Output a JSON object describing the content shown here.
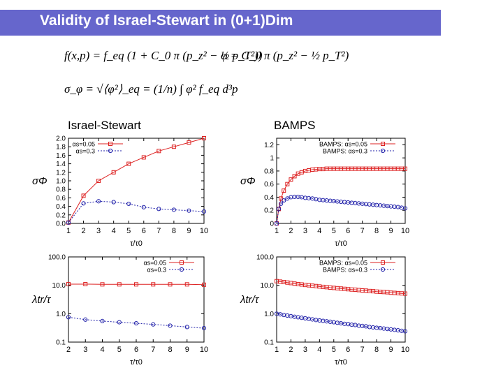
{
  "slide": {
    "title": "Validity of Israel-Stewart in (0+1)Dim",
    "formula_distribution": "f(x,p) = f_eq (1 + C_0 π (p_z² − ½ p_T²))",
    "formula_phi": "φ = C_0 π (p_z² − ½ p_T²)",
    "formula_sigma": "σ_φ = √⟨φ²⟩_eq = (1/n) ∫ φ² f_eq d³p",
    "label_left": "Israel-Stewart",
    "label_right": "BAMPS"
  },
  "colors": {
    "title_bar": "#6666cc",
    "red_series": "#dd2222",
    "blue_series": "#2222aa"
  },
  "chart_data": [
    {
      "id": "is-sigma",
      "type": "line",
      "ylabel": "σΦ",
      "xlabel": "τ/τ0",
      "xlim": [
        1,
        10
      ],
      "ylim": [
        0,
        2.0
      ],
      "y_scale": "linear",
      "xticks": [
        "1",
        "2",
        "3",
        "4",
        "5",
        "6",
        "7",
        "8",
        "9",
        "10"
      ],
      "yticks": [
        "0.0",
        "0.2",
        "0.4",
        "0.6",
        "0.8",
        "1.0",
        "1.2",
        "1.4",
        "1.6",
        "1.8",
        "2.0"
      ],
      "xtick_values": [
        1,
        2,
        3,
        4,
        5,
        6,
        7,
        8,
        9,
        10
      ],
      "ytick_values": [
        0,
        0.2,
        0.4,
        0.6,
        0.8,
        1.0,
        1.2,
        1.4,
        1.6,
        1.8,
        2.0
      ],
      "legend_position": "top-left",
      "series": [
        {
          "name": "αs=0.05",
          "color": "#dd2222",
          "marker": "square",
          "dash": "solid",
          "x": [
            1,
            2,
            3,
            4,
            5,
            6,
            7,
            8,
            9,
            10
          ],
          "y": [
            0.02,
            0.65,
            1.0,
            1.2,
            1.4,
            1.55,
            1.7,
            1.8,
            1.9,
            2.0
          ]
        },
        {
          "name": "αs=0.3",
          "color": "#2222aa",
          "marker": "circle",
          "dash": "dotted",
          "x": [
            1,
            2,
            3,
            4,
            5,
            6,
            7,
            8,
            9,
            10
          ],
          "y": [
            0.02,
            0.47,
            0.52,
            0.5,
            0.46,
            0.38,
            0.34,
            0.32,
            0.3,
            0.28
          ]
        }
      ]
    },
    {
      "id": "bamps-sigma",
      "type": "line",
      "ylabel": "σΦ",
      "xlabel": "τ/τ0",
      "xlim": [
        1,
        10
      ],
      "ylim": [
        0,
        1.3
      ],
      "y_scale": "linear",
      "xticks": [
        "1",
        "2",
        "3",
        "4",
        "5",
        "6",
        "7",
        "8",
        "9",
        "10"
      ],
      "yticks": [
        "0",
        "0.2",
        "0.4",
        "0.6",
        "0.8",
        "1",
        "1.2"
      ],
      "xtick_values": [
        1,
        2,
        3,
        4,
        5,
        6,
        7,
        8,
        9,
        10
      ],
      "ytick_values": [
        0,
        0.2,
        0.4,
        0.6,
        0.8,
        1,
        1.2
      ],
      "legend_position": "top-right",
      "series": [
        {
          "name": "BAMPS: αs=0.05",
          "color": "#dd2222",
          "marker": "square",
          "dash": "solid",
          "x": [
            1,
            1.15,
            1.3,
            1.5,
            1.75,
            2,
            2.25,
            2.5,
            2.75,
            3,
            3.25,
            3.5,
            3.75,
            4,
            4.25,
            4.5,
            4.75,
            5,
            5.25,
            5.5,
            5.75,
            6,
            6.25,
            6.5,
            6.75,
            7,
            7.25,
            7.5,
            7.75,
            8,
            8.25,
            8.5,
            8.75,
            9,
            9.25,
            9.5,
            9.75,
            10
          ],
          "y": [
            0.0,
            0.22,
            0.38,
            0.5,
            0.6,
            0.67,
            0.72,
            0.76,
            0.78,
            0.8,
            0.81,
            0.82,
            0.825,
            0.83,
            0.83,
            0.835,
            0.835,
            0.835,
            0.835,
            0.835,
            0.835,
            0.835,
            0.835,
            0.835,
            0.835,
            0.835,
            0.835,
            0.835,
            0.835,
            0.835,
            0.835,
            0.835,
            0.835,
            0.835,
            0.835,
            0.835,
            0.835,
            0.835
          ]
        },
        {
          "name": "BAMPS: αs=0.3",
          "color": "#2222aa",
          "marker": "circle",
          "dash": "dotted",
          "x": [
            1,
            1.15,
            1.3,
            1.5,
            1.75,
            2,
            2.25,
            2.5,
            2.75,
            3,
            3.25,
            3.5,
            3.75,
            4,
            4.25,
            4.5,
            4.75,
            5,
            5.25,
            5.5,
            5.75,
            6,
            6.25,
            6.5,
            6.75,
            7,
            7.25,
            7.5,
            7.75,
            8,
            8.25,
            8.5,
            8.75,
            9,
            9.25,
            9.5,
            9.75,
            10
          ],
          "y": [
            0.0,
            0.22,
            0.3,
            0.35,
            0.38,
            0.4,
            0.405,
            0.405,
            0.4,
            0.39,
            0.385,
            0.38,
            0.37,
            0.36,
            0.355,
            0.35,
            0.345,
            0.34,
            0.335,
            0.33,
            0.325,
            0.32,
            0.315,
            0.31,
            0.305,
            0.3,
            0.295,
            0.29,
            0.285,
            0.28,
            0.275,
            0.27,
            0.265,
            0.26,
            0.255,
            0.25,
            0.24,
            0.23
          ]
        }
      ]
    },
    {
      "id": "is-lambda",
      "type": "line",
      "ylabel": "λtr/τ",
      "xlabel": "τ/τ0",
      "xlim": [
        2,
        10
      ],
      "ylim": [
        0.1,
        100
      ],
      "y_scale": "log",
      "xticks": [
        "2",
        "3",
        "4",
        "5",
        "6",
        "7",
        "8",
        "9",
        "10"
      ],
      "yticks": [
        "0.1",
        "1.0",
        "10.0",
        "100.0"
      ],
      "xtick_values": [
        2,
        3,
        4,
        5,
        6,
        7,
        8,
        9,
        10
      ],
      "ytick_values": [
        0.1,
        1,
        10,
        100
      ],
      "legend_position": "top-right",
      "series": [
        {
          "name": "αs=0.05",
          "color": "#dd2222",
          "marker": "square",
          "dash": "solid",
          "x": [
            2,
            3,
            4,
            5,
            6,
            7,
            8,
            9,
            10
          ],
          "y": [
            11,
            11,
            10.8,
            10.8,
            10.8,
            10.8,
            10.8,
            10.8,
            10.5
          ]
        },
        {
          "name": "αs=0.3",
          "color": "#2222aa",
          "marker": "circle",
          "dash": "dotted",
          "x": [
            2,
            3,
            4,
            5,
            6,
            7,
            8,
            9,
            10
          ],
          "y": [
            0.75,
            0.62,
            0.55,
            0.5,
            0.46,
            0.42,
            0.38,
            0.34,
            0.31
          ]
        }
      ]
    },
    {
      "id": "bamps-lambda",
      "type": "line",
      "ylabel": "λtr/τ",
      "xlabel": "τ/τ0",
      "xlim": [
        1,
        10
      ],
      "ylim": [
        0.1,
        100
      ],
      "y_scale": "log",
      "xticks": [
        "1",
        "2",
        "3",
        "4",
        "5",
        "6",
        "7",
        "8",
        "9",
        "10"
      ],
      "yticks": [
        "0.1",
        "1.0",
        "10.0",
        "100.0"
      ],
      "xtick_values": [
        1,
        2,
        3,
        4,
        5,
        6,
        7,
        8,
        9,
        10
      ],
      "ytick_values": [
        0.1,
        1,
        10,
        100
      ],
      "legend_position": "top-right",
      "series": [
        {
          "name": "BAMPS: αs=0.05",
          "color": "#dd2222",
          "marker": "square",
          "dash": "solid",
          "x": [
            1,
            1.25,
            1.5,
            1.75,
            2,
            2.25,
            2.5,
            2.75,
            3,
            3.25,
            3.5,
            3.75,
            4,
            4.25,
            4.5,
            4.75,
            5,
            5.25,
            5.5,
            5.75,
            6,
            6.25,
            6.5,
            6.75,
            7,
            7.25,
            7.5,
            7.75,
            8,
            8.25,
            8.5,
            8.75,
            9,
            9.25,
            9.5,
            9.75,
            10
          ],
          "y": [
            14,
            13.5,
            13,
            12.5,
            12,
            11.5,
            11,
            10.7,
            10.3,
            10,
            9.7,
            9.4,
            9.1,
            8.8,
            8.6,
            8.3,
            8.1,
            7.9,
            7.7,
            7.5,
            7.3,
            7.1,
            7,
            6.8,
            6.6,
            6.5,
            6.3,
            6.2,
            6,
            5.9,
            5.8,
            5.7,
            5.5,
            5.4,
            5.3,
            5.2,
            5.1
          ]
        },
        {
          "name": "BAMPS: αs=0.3",
          "color": "#2222aa",
          "marker": "circle",
          "dash": "dotted",
          "x": [
            1,
            1.25,
            1.5,
            1.75,
            2,
            2.25,
            2.5,
            2.75,
            3,
            3.25,
            3.5,
            3.75,
            4,
            4.25,
            4.5,
            4.75,
            5,
            5.25,
            5.5,
            5.75,
            6,
            6.25,
            6.5,
            6.75,
            7,
            7.25,
            7.5,
            7.75,
            8,
            8.25,
            8.5,
            8.75,
            9,
            9.25,
            9.5,
            9.75,
            10
          ],
          "y": [
            1.0,
            0.95,
            0.9,
            0.86,
            0.82,
            0.78,
            0.75,
            0.72,
            0.69,
            0.66,
            0.63,
            0.6,
            0.58,
            0.56,
            0.54,
            0.52,
            0.5,
            0.48,
            0.46,
            0.44,
            0.43,
            0.41,
            0.4,
            0.38,
            0.37,
            0.36,
            0.34,
            0.33,
            0.32,
            0.31,
            0.3,
            0.29,
            0.28,
            0.27,
            0.26,
            0.25,
            0.24
          ]
        }
      ]
    }
  ]
}
